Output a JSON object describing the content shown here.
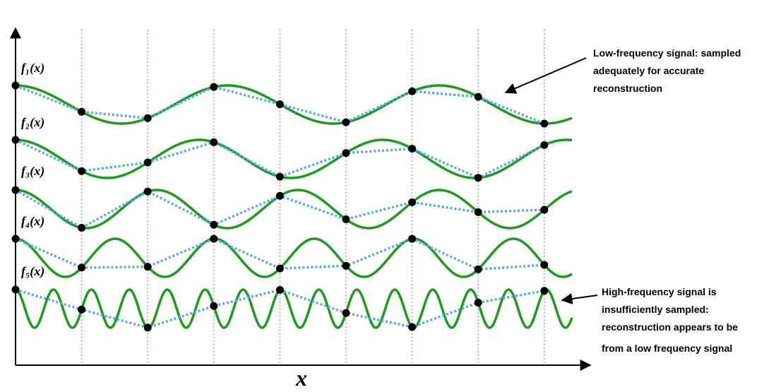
{
  "labels": [
    "f₁(x)",
    "f₂(x)",
    "f₃(x)",
    "f₄(x)",
    "f₅(x)"
  ],
  "annotations": {
    "low": {
      "lines": [
        "Low-frequency signal: sampled",
        "adequately for accurate",
        "reconstruction"
      ]
    },
    "high": {
      "lines": [
        "High-frequency signal is",
        "insufficiently sampled:",
        "reconstruction appears to be",
        "from a low frequency signal"
      ]
    }
  },
  "axis_label": "x"
}
